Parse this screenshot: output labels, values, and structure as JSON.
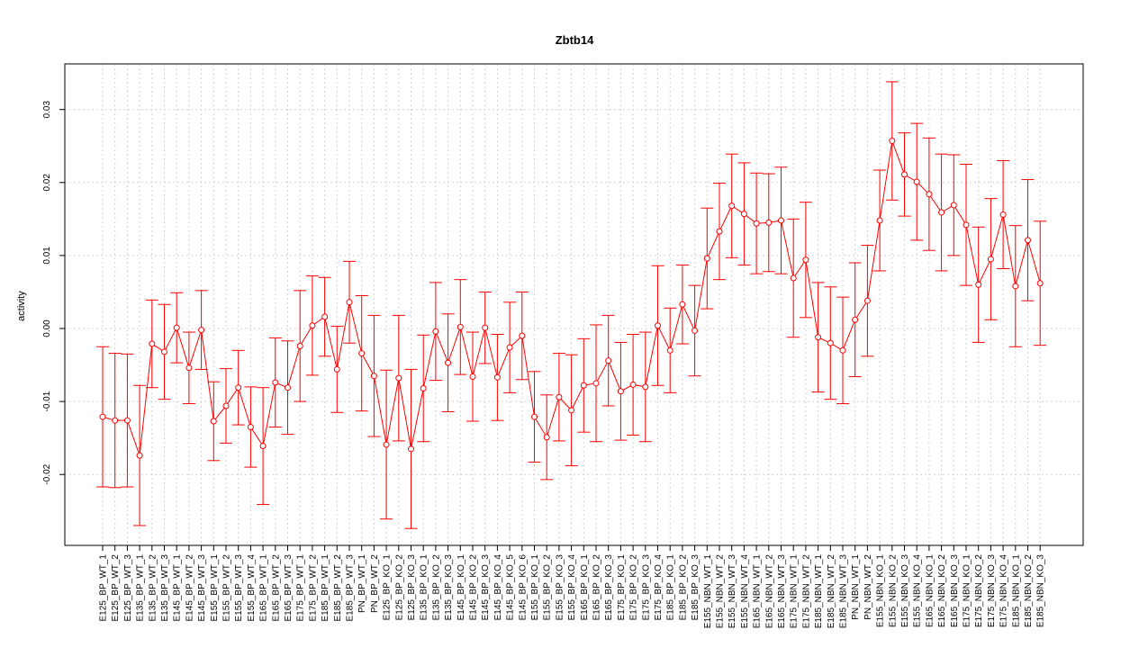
{
  "chart_data": {
    "type": "line",
    "title": "Zbtb14",
    "xlabel": "",
    "ylabel": "activity",
    "ylim": [
      -0.0295,
      0.0358
    ],
    "yticks": [
      -0.02,
      -0.01,
      0.0,
      0.01,
      0.02,
      0.03
    ],
    "ytick_labels": [
      "-0.02",
      "-0.01",
      "0.00",
      "0.01",
      "0.02",
      "0.03"
    ],
    "grid": true,
    "color": "#ff0000",
    "categories": [
      "E125_BP_WT_1",
      "E125_BP_WT_2",
      "E125_BP_WT_3",
      "E135_BP_WT_1",
      "E135_BP_WT_2",
      "E135_BP_WT_3",
      "E145_BP_WT_1",
      "E145_BP_WT_2",
      "E145_BP_WT_3",
      "E155_BP_WT_1",
      "E155_BP_WT_2",
      "E155_BP_WT_3",
      "E155_BP_WT_4",
      "E165_BP_WT_1",
      "E165_BP_WT_2",
      "E165_BP_WT_3",
      "E175_BP_WT_1",
      "E175_BP_WT_2",
      "E185_BP_WT_1",
      "E185_BP_WT_2",
      "E185_BP_WT_3",
      "PN_BP_WT_1",
      "PN_BP_WT_2",
      "E125_BP_KO_1",
      "E125_BP_KO_2",
      "E125_BP_KO_3",
      "E135_BP_KO_1",
      "E135_BP_KO_2",
      "E135_BP_KO_3",
      "E145_BP_KO_1",
      "E145_BP_KO_2",
      "E145_BP_KO_3",
      "E145_BP_KO_4",
      "E145_BP_KO_5",
      "E145_BP_KO_6",
      "E155_BP_KO_1",
      "E155_BP_KO_2",
      "E155_BP_KO_3",
      "E155_BP_KO_4",
      "E165_BP_KO_1",
      "E165_BP_KO_2",
      "E165_BP_KO_3",
      "E175_BP_KO_1",
      "E175_BP_KO_2",
      "E175_BP_KO_3",
      "E175_BP_KO_4",
      "E185_BP_KO_1",
      "E185_BP_KO_2",
      "E185_BP_KO_3",
      "E155_NBN_WT_1",
      "E155_NBN_WT_2",
      "E155_NBN_WT_3",
      "E155_NBN_WT_4",
      "E165_NBN_WT_1",
      "E165_NBN_WT_2",
      "E165_NBN_WT_3",
      "E175_NBN_WT_1",
      "E175_NBN_WT_2",
      "E185_NBN_WT_1",
      "E185_NBN_WT_2",
      "E185_NBN_WT_3",
      "PN_NBN_WT_1",
      "PN_NBN_WT_2",
      "E155_NBN_KO_1",
      "E155_NBN_KO_2",
      "E155_NBN_KO_3",
      "E155_NBN_KO_4",
      "E165_NBN_KO_1",
      "E165_NBN_KO_2",
      "E165_NBN_KO_3",
      "E175_NBN_KO_1",
      "E175_NBN_KO_2",
      "E175_NBN_KO_3",
      "E175_NBN_KO_4",
      "E185_NBN_KO_1",
      "E185_NBN_KO_2",
      "E185_NBN_KO_3"
    ],
    "values": [
      -0.0121,
      -0.0126,
      -0.0126,
      -0.0174,
      -0.0021,
      -0.0032,
      0.0001,
      -0.0054,
      -0.0002,
      -0.0127,
      -0.0106,
      -0.0081,
      -0.0135,
      -0.0161,
      -0.0074,
      -0.0081,
      -0.0024,
      0.0004,
      0.0016,
      -0.0056,
      0.0036,
      -0.0034,
      -0.0065,
      -0.0159,
      -0.0068,
      -0.0165,
      -0.0082,
      -0.0004,
      -0.0047,
      0.0002,
      -0.0066,
      0.0001,
      -0.0067,
      -0.0026,
      -0.001,
      -0.0121,
      -0.0149,
      -0.0094,
      -0.0112,
      -0.0078,
      -0.0075,
      -0.0044,
      -0.0086,
      -0.0077,
      -0.008,
      0.0004,
      -0.003,
      0.0033,
      -0.0003,
      0.0096,
      0.0133,
      0.0168,
      0.0157,
      0.0144,
      0.0145,
      0.0148,
      0.0069,
      0.0094,
      -0.0012,
      -0.002,
      -0.003,
      0.0012,
      0.0038,
      0.0148,
      0.0257,
      0.0211,
      0.0201,
      0.0184,
      0.0159,
      0.0169,
      0.0142,
      0.006,
      0.0095,
      0.0156,
      0.0058,
      0.0121,
      0.0062
    ],
    "errors": [
      0.0096,
      0.0092,
      0.0091,
      0.0096,
      0.006,
      0.0065,
      0.0048,
      0.0049,
      0.0054,
      0.0054,
      0.0051,
      0.0051,
      0.0055,
      0.008,
      0.0061,
      0.0064,
      0.0076,
      0.0068,
      0.0054,
      0.0059,
      0.0056,
      0.0079,
      0.0083,
      0.0102,
      0.0086,
      0.0109,
      0.0073,
      0.0067,
      0.0067,
      0.0065,
      0.0061,
      0.0049,
      0.0059,
      0.0062,
      0.006,
      0.0062,
      0.0058,
      0.006,
      0.0076,
      0.0064,
      0.008,
      0.0062,
      0.0067,
      0.0069,
      0.0075,
      0.0082,
      0.0058,
      0.0054,
      0.0062,
      0.0069,
      0.0066,
      0.0071,
      0.007,
      0.0069,
      0.0067,
      0.0073,
      0.0081,
      0.0079,
      0.0075,
      0.0077,
      0.0073,
      0.0078,
      0.0076,
      0.0069,
      0.0081,
      0.0057,
      0.008,
      0.0077,
      0.008,
      0.0069,
      0.0083,
      0.0079,
      0.0083,
      0.0074,
      0.0083,
      0.0083,
      0.0085
    ]
  }
}
